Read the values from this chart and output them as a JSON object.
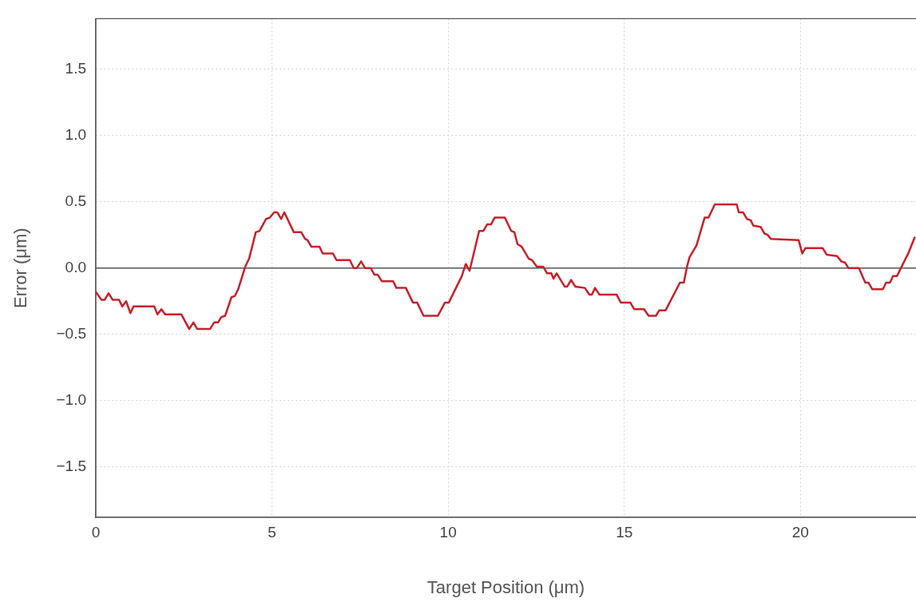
{
  "chart_data": {
    "type": "line",
    "xlabel": "Target Position (μm)",
    "ylabel": "Error (μm)",
    "xlim": [
      0,
      23.28
    ],
    "ylim": [
      -1.88,
      1.88
    ],
    "xticks": [
      0,
      5,
      10,
      15,
      20
    ],
    "yticks": [
      {
        "value": -1.5,
        "label": "−1.5"
      },
      {
        "value": -1,
        "label": "−1.0"
      },
      {
        "value": -0.5,
        "label": "−0.5"
      },
      {
        "value": 0,
        "label": "0.0"
      },
      {
        "value": 0.5,
        "label": "0.5"
      },
      {
        "value": 1,
        "label": "1.0"
      },
      {
        "value": 1.5,
        "label": "1.5"
      }
    ],
    "grid": true,
    "legend": false,
    "marker": "none",
    "line_style": "solid",
    "ref_lines": [
      {
        "axis": "y",
        "value": 0,
        "color": "#555555"
      }
    ],
    "series": [
      {
        "color": "#c8202a",
        "x": [
          0,
          0.16,
          0.25,
          0.36,
          0.48,
          0.66,
          0.75,
          0.86,
          0.98,
          1.07,
          1.66,
          1.75,
          1.86,
          1.97,
          2.43,
          2.65,
          2.77,
          2.88,
          3.24,
          3.36,
          3.47,
          3.56,
          3.67,
          3.85,
          3.95,
          4.04,
          4.24,
          4.35,
          4.54,
          4.65,
          4.83,
          4.94,
          5.06,
          5.15,
          5.26,
          5.35,
          5.62,
          5.83,
          5.94,
          6.01,
          6.12,
          6.35,
          6.44,
          6.73,
          6.83,
          7.21,
          7.32,
          7.41,
          7.53,
          7.64,
          7.8,
          7.91,
          8,
          8.12,
          8.44,
          8.53,
          8.8,
          9,
          9.12,
          9.3,
          9.71,
          9.91,
          10.02,
          10.39,
          10.5,
          10.61,
          10.88,
          11,
          11.11,
          11.22,
          11.32,
          11.61,
          11.79,
          11.88,
          11.97,
          12.09,
          12.29,
          12.38,
          12.52,
          12.7,
          12.81,
          12.93,
          12.99,
          13.08,
          13.31,
          13.38,
          13.49,
          13.61,
          13.88,
          14.01,
          14.08,
          14.17,
          14.29,
          14.78,
          14.9,
          15.17,
          15.28,
          15.56,
          15.69,
          15.9,
          15.99,
          16.17,
          16.58,
          16.69,
          16.78,
          16.85,
          17.05,
          17.28,
          17.39,
          17.57,
          18.19,
          18.25,
          18.37,
          18.48,
          18.59,
          18.66,
          18.87,
          18.98,
          19.07,
          19.16,
          19.95,
          20.05,
          20.14,
          20.63,
          20.75,
          21.04,
          21.16,
          21.27,
          21.36,
          21.66,
          21.84,
          21.93,
          22.04,
          22.34,
          22.43,
          22.54,
          22.63,
          22.74,
          23.06,
          23.24
        ],
        "values": [
          -0.18,
          -0.24,
          -0.24,
          -0.19,
          -0.24,
          -0.24,
          -0.29,
          -0.25,
          -0.34,
          -0.29,
          -0.29,
          -0.35,
          -0.31,
          -0.35,
          -0.35,
          -0.46,
          -0.41,
          -0.46,
          -0.46,
          -0.41,
          -0.41,
          -0.37,
          -0.36,
          -0.22,
          -0.21,
          -0.16,
          0.01,
          0.07,
          0.27,
          0.28,
          0.37,
          0.38,
          0.42,
          0.42,
          0.37,
          0.42,
          0.27,
          0.27,
          0.22,
          0.21,
          0.16,
          0.16,
          0.11,
          0.11,
          0.06,
          0.06,
          0,
          0,
          0.05,
          0,
          0,
          -0.05,
          -0.05,
          -0.1,
          -0.1,
          -0.15,
          -0.15,
          -0.26,
          -0.26,
          -0.36,
          -0.36,
          -0.26,
          -0.26,
          -0.06,
          0.03,
          -0.02,
          0.28,
          0.28,
          0.33,
          0.33,
          0.38,
          0.38,
          0.28,
          0.27,
          0.18,
          0.16,
          0.07,
          0.06,
          0.01,
          0.01,
          -0.04,
          -0.04,
          -0.08,
          -0.04,
          -0.14,
          -0.14,
          -0.09,
          -0.14,
          -0.15,
          -0.2,
          -0.2,
          -0.15,
          -0.2,
          -0.2,
          -0.26,
          -0.26,
          -0.31,
          -0.31,
          -0.36,
          -0.36,
          -0.32,
          -0.32,
          -0.11,
          -0.11,
          0.01,
          0.08,
          0.17,
          0.38,
          0.38,
          0.48,
          0.48,
          0.42,
          0.42,
          0.37,
          0.36,
          0.32,
          0.31,
          0.26,
          0.25,
          0.22,
          0.21,
          0.11,
          0.15,
          0.15,
          0.1,
          0.09,
          0.05,
          0.04,
          0,
          0,
          -0.11,
          -0.11,
          -0.16,
          -0.16,
          -0.11,
          -0.11,
          -0.06,
          -0.06,
          0.11,
          0.23
        ]
      }
    ]
  }
}
